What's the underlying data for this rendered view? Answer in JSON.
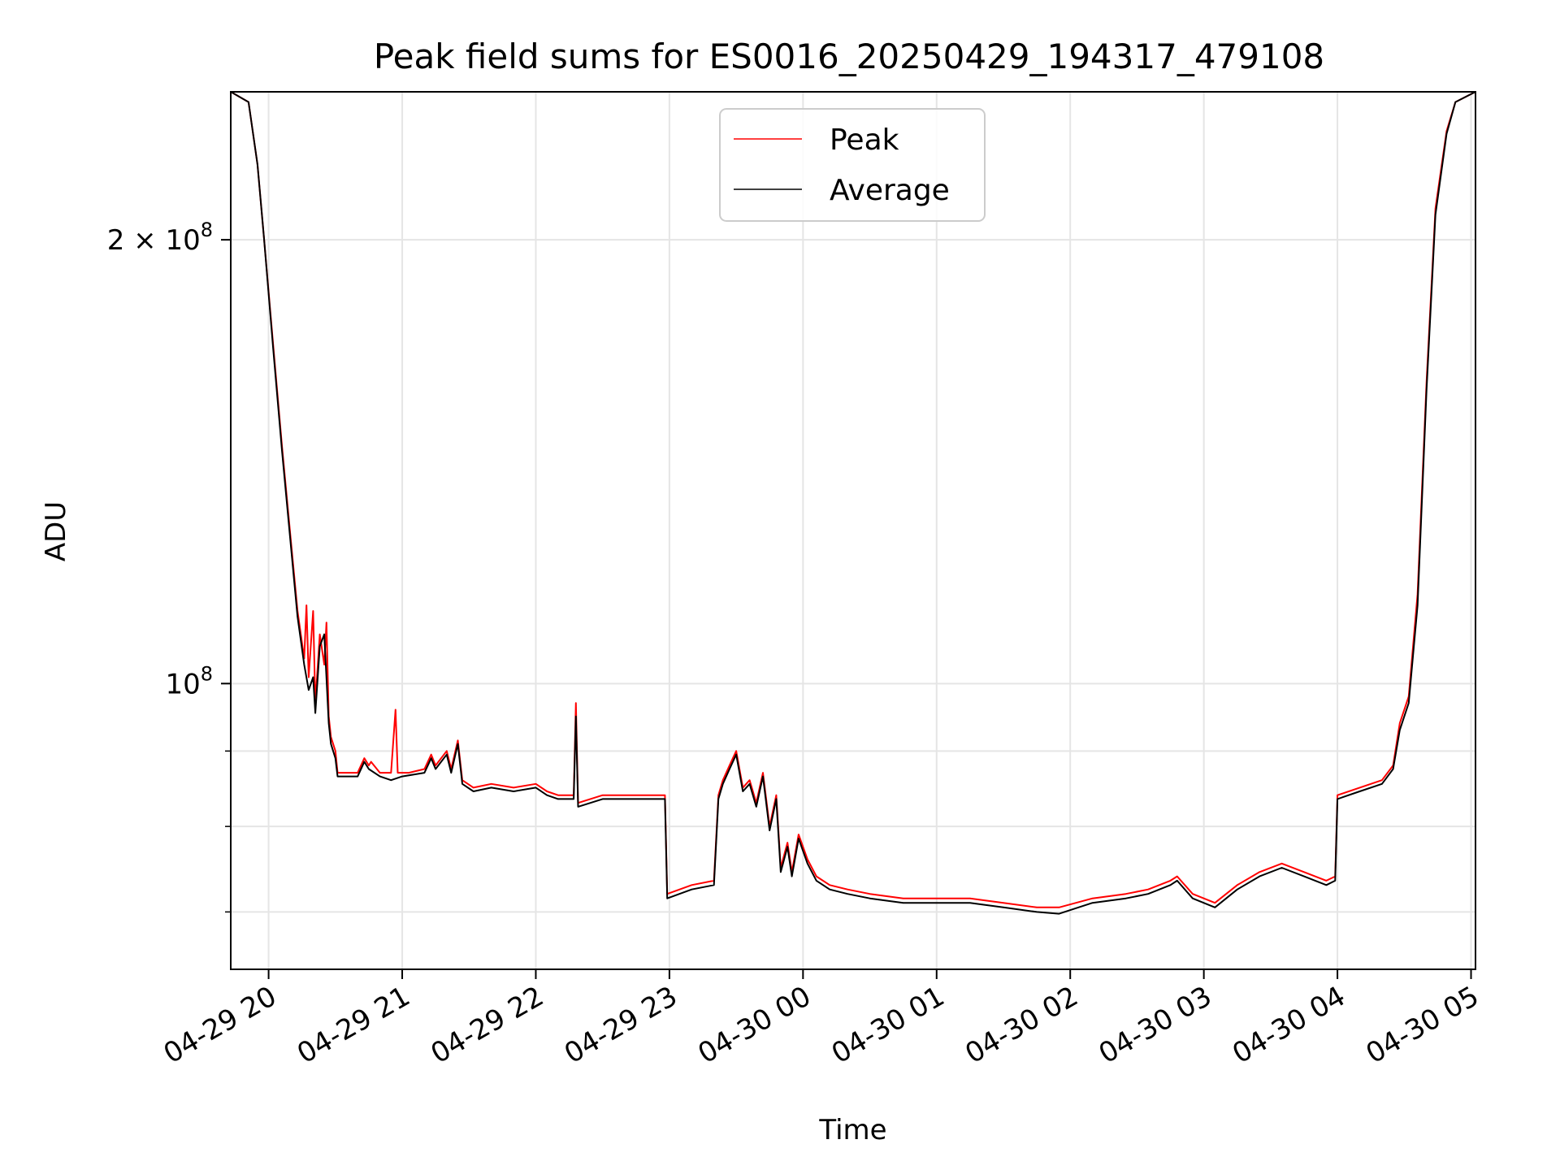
{
  "chart_data": {
    "type": "line",
    "title": "Peak field sums for ES0016_20250429_194317_479108",
    "xlabel": "Time",
    "ylabel": "ADU",
    "yscale": "log",
    "ylim": [
      64000000,
      252000000
    ],
    "xlim": [
      "2025-04-29 19:43",
      "2025-04-30 05:02"
    ],
    "grid": true,
    "legend_position": "top-center",
    "x_ticks": [
      "04-29 20",
      "04-29 21",
      "04-29 22",
      "04-29 23",
      "04-30 00",
      "04-30 01",
      "04-30 02",
      "04-30 03",
      "04-30 04",
      "04-30 05"
    ],
    "x_tick_values": [
      "2025-04-29 20:00",
      "2025-04-29 21:00",
      "2025-04-29 22:00",
      "2025-04-29 23:00",
      "2025-04-30 00:00",
      "2025-04-30 01:00",
      "2025-04-30 02:00",
      "2025-04-30 03:00",
      "2025-04-30 04:00",
      "2025-04-30 05:00"
    ],
    "y_ticks": [
      {
        "value": 200000000,
        "base": "2 × 10",
        "exp": "8"
      },
      {
        "value": 100000000,
        "base": "10",
        "exp": "8"
      }
    ],
    "y_minor_ticks": [
      70000000,
      80000000,
      90000000
    ],
    "series": [
      {
        "name": "Peak",
        "color": "#ff0000",
        "points": [
          [
            "2025-04-29 19:43",
            252000000
          ],
          [
            "2025-04-29 19:51",
            248000000
          ],
          [
            "2025-04-29 19:55",
            225000000
          ],
          [
            "2025-04-29 19:58",
            200000000
          ],
          [
            "2025-04-29 20:02",
            170000000
          ],
          [
            "2025-04-29 20:06",
            145000000
          ],
          [
            "2025-04-29 20:10",
            125000000
          ],
          [
            "2025-04-29 20:13",
            112000000
          ],
          [
            "2025-04-29 20:16",
            104000000
          ],
          [
            "2025-04-29 20:17",
            113000000
          ],
          [
            "2025-04-29 20:18",
            101000000
          ],
          [
            "2025-04-29 20:20",
            112000000
          ],
          [
            "2025-04-29 20:21",
            97000000
          ],
          [
            "2025-04-29 20:23",
            108000000
          ],
          [
            "2025-04-29 20:25",
            103000000
          ],
          [
            "2025-04-29 20:26",
            110000000
          ],
          [
            "2025-04-29 20:27",
            95000000
          ],
          [
            "2025-04-29 20:28",
            92000000
          ],
          [
            "2025-04-29 20:30",
            90000000
          ],
          [
            "2025-04-29 20:31",
            87000000
          ],
          [
            "2025-04-29 20:35",
            87000000
          ],
          [
            "2025-04-29 20:40",
            87000000
          ],
          [
            "2025-04-29 20:43",
            89000000
          ],
          [
            "2025-04-29 20:45",
            88000000
          ],
          [
            "2025-04-29 20:46",
            88500000
          ],
          [
            "2025-04-29 20:50",
            87000000
          ],
          [
            "2025-04-29 20:55",
            87000000
          ],
          [
            "2025-04-29 20:57",
            96000000
          ],
          [
            "2025-04-29 20:58",
            87000000
          ],
          [
            "2025-04-29 21:03",
            87000000
          ],
          [
            "2025-04-29 21:10",
            87500000
          ],
          [
            "2025-04-29 21:13",
            89500000
          ],
          [
            "2025-04-29 21:15",
            88000000
          ],
          [
            "2025-04-29 21:20",
            90000000
          ],
          [
            "2025-04-29 21:22",
            87500000
          ],
          [
            "2025-04-29 21:25",
            91500000
          ],
          [
            "2025-04-29 21:27",
            86000000
          ],
          [
            "2025-04-29 21:32",
            85000000
          ],
          [
            "2025-04-29 21:40",
            85500000
          ],
          [
            "2025-04-29 21:50",
            85000000
          ],
          [
            "2025-04-29 22:00",
            85500000
          ],
          [
            "2025-04-29 22:05",
            84500000
          ],
          [
            "2025-04-29 22:10",
            84000000
          ],
          [
            "2025-04-29 22:15",
            84000000
          ],
          [
            "2025-04-29 22:17",
            84000000
          ],
          [
            "2025-04-29 22:18",
            97000000
          ],
          [
            "2025-04-29 22:19",
            83000000
          ],
          [
            "2025-04-29 22:30",
            84000000
          ],
          [
            "2025-04-29 22:40",
            84000000
          ],
          [
            "2025-04-29 22:50",
            84000000
          ],
          [
            "2025-04-29 22:58",
            84000000
          ],
          [
            "2025-04-29 22:59",
            72000000
          ],
          [
            "2025-04-29 23:10",
            73000000
          ],
          [
            "2025-04-29 23:20",
            73500000
          ],
          [
            "2025-04-29 23:22",
            84000000
          ],
          [
            "2025-04-29 23:24",
            86000000
          ],
          [
            "2025-04-29 23:27",
            88000000
          ],
          [
            "2025-04-29 23:30",
            90000000
          ],
          [
            "2025-04-29 23:33",
            85000000
          ],
          [
            "2025-04-29 23:36",
            86000000
          ],
          [
            "2025-04-29 23:39",
            83000000
          ],
          [
            "2025-04-29 23:42",
            87000000
          ],
          [
            "2025-04-29 23:45",
            80000000
          ],
          [
            "2025-04-29 23:48",
            84000000
          ],
          [
            "2025-04-29 23:50",
            75000000
          ],
          [
            "2025-04-29 23:53",
            78000000
          ],
          [
            "2025-04-29 23:55",
            74500000
          ],
          [
            "2025-04-29 23:58",
            79000000
          ],
          [
            "2025-04-30 00:02",
            76000000
          ],
          [
            "2025-04-30 00:06",
            74000000
          ],
          [
            "2025-04-30 00:12",
            73000000
          ],
          [
            "2025-04-30 00:20",
            72500000
          ],
          [
            "2025-04-30 00:30",
            72000000
          ],
          [
            "2025-04-30 00:45",
            71500000
          ],
          [
            "2025-04-30 01:00",
            71500000
          ],
          [
            "2025-04-30 01:15",
            71500000
          ],
          [
            "2025-04-30 01:30",
            71000000
          ],
          [
            "2025-04-30 01:45",
            70500000
          ],
          [
            "2025-04-30 01:55",
            70500000
          ],
          [
            "2025-04-30 02:10",
            71500000
          ],
          [
            "2025-04-30 02:25",
            72000000
          ],
          [
            "2025-04-30 02:35",
            72500000
          ],
          [
            "2025-04-30 02:45",
            73500000
          ],
          [
            "2025-04-30 02:48",
            74000000
          ],
          [
            "2025-04-30 02:55",
            72000000
          ],
          [
            "2025-04-30 03:05",
            71000000
          ],
          [
            "2025-04-30 03:15",
            73000000
          ],
          [
            "2025-04-30 03:25",
            74500000
          ],
          [
            "2025-04-30 03:35",
            75500000
          ],
          [
            "2025-04-30 03:45",
            74500000
          ],
          [
            "2025-04-30 03:55",
            73500000
          ],
          [
            "2025-04-30 03:59",
            74000000
          ],
          [
            "2025-04-30 04:00",
            84000000
          ],
          [
            "2025-04-30 04:10",
            85000000
          ],
          [
            "2025-04-30 04:20",
            86000000
          ],
          [
            "2025-04-30 04:25",
            88000000
          ],
          [
            "2025-04-30 04:28",
            94000000
          ],
          [
            "2025-04-30 04:32",
            98000000
          ],
          [
            "2025-04-30 04:36",
            115000000
          ],
          [
            "2025-04-30 04:40",
            160000000
          ],
          [
            "2025-04-30 04:44",
            210000000
          ],
          [
            "2025-04-30 04:49",
            237000000
          ],
          [
            "2025-04-30 04:53",
            248000000
          ],
          [
            "2025-04-30 05:02",
            252000000
          ]
        ]
      },
      {
        "name": "Average",
        "color": "#000000",
        "points": [
          [
            "2025-04-29 19:43",
            252000000
          ],
          [
            "2025-04-29 19:51",
            248000000
          ],
          [
            "2025-04-29 19:55",
            225000000
          ],
          [
            "2025-04-29 19:58",
            200000000
          ],
          [
            "2025-04-29 20:02",
            169000000
          ],
          [
            "2025-04-29 20:06",
            144000000
          ],
          [
            "2025-04-29 20:10",
            124000000
          ],
          [
            "2025-04-29 20:13",
            111000000
          ],
          [
            "2025-04-29 20:16",
            103000000
          ],
          [
            "2025-04-29 20:18",
            99000000
          ],
          [
            "2025-04-29 20:20",
            101000000
          ],
          [
            "2025-04-29 20:21",
            95500000
          ],
          [
            "2025-04-29 20:23",
            106000000
          ],
          [
            "2025-04-29 20:25",
            108000000
          ],
          [
            "2025-04-29 20:27",
            94000000
          ],
          [
            "2025-04-29 20:28",
            91000000
          ],
          [
            "2025-04-29 20:30",
            89000000
          ],
          [
            "2025-04-29 20:31",
            86500000
          ],
          [
            "2025-04-29 20:35",
            86500000
          ],
          [
            "2025-04-29 20:40",
            86500000
          ],
          [
            "2025-04-29 20:43",
            88500000
          ],
          [
            "2025-04-29 20:45",
            87500000
          ],
          [
            "2025-04-29 20:50",
            86500000
          ],
          [
            "2025-04-29 20:55",
            86000000
          ],
          [
            "2025-04-29 21:00",
            86500000
          ],
          [
            "2025-04-29 21:10",
            87000000
          ],
          [
            "2025-04-29 21:13",
            89000000
          ],
          [
            "2025-04-29 21:15",
            87500000
          ],
          [
            "2025-04-29 21:20",
            89500000
          ],
          [
            "2025-04-29 21:22",
            87000000
          ],
          [
            "2025-04-29 21:25",
            91000000
          ],
          [
            "2025-04-29 21:27",
            85500000
          ],
          [
            "2025-04-29 21:32",
            84500000
          ],
          [
            "2025-04-29 21:40",
            85000000
          ],
          [
            "2025-04-29 21:50",
            84500000
          ],
          [
            "2025-04-29 22:00",
            85000000
          ],
          [
            "2025-04-29 22:05",
            84000000
          ],
          [
            "2025-04-29 22:10",
            83500000
          ],
          [
            "2025-04-29 22:17",
            83500000
          ],
          [
            "2025-04-29 22:18",
            95000000
          ],
          [
            "2025-04-29 22:19",
            82500000
          ],
          [
            "2025-04-29 22:30",
            83500000
          ],
          [
            "2025-04-29 22:40",
            83500000
          ],
          [
            "2025-04-29 22:50",
            83500000
          ],
          [
            "2025-04-29 22:58",
            83500000
          ],
          [
            "2025-04-29 22:59",
            71500000
          ],
          [
            "2025-04-29 23:10",
            72500000
          ],
          [
            "2025-04-29 23:20",
            73000000
          ],
          [
            "2025-04-29 23:22",
            83500000
          ],
          [
            "2025-04-29 23:24",
            85500000
          ],
          [
            "2025-04-29 23:27",
            87500000
          ],
          [
            "2025-04-29 23:30",
            89500000
          ],
          [
            "2025-04-29 23:33",
            84500000
          ],
          [
            "2025-04-29 23:36",
            85500000
          ],
          [
            "2025-04-29 23:39",
            82500000
          ],
          [
            "2025-04-29 23:42",
            86500000
          ],
          [
            "2025-04-29 23:45",
            79500000
          ],
          [
            "2025-04-29 23:48",
            83500000
          ],
          [
            "2025-04-29 23:50",
            74500000
          ],
          [
            "2025-04-29 23:53",
            77500000
          ],
          [
            "2025-04-29 23:55",
            74000000
          ],
          [
            "2025-04-29 23:58",
            78500000
          ],
          [
            "2025-04-30 00:02",
            75500000
          ],
          [
            "2025-04-30 00:06",
            73500000
          ],
          [
            "2025-04-30 00:12",
            72500000
          ],
          [
            "2025-04-30 00:20",
            72000000
          ],
          [
            "2025-04-30 00:30",
            71500000
          ],
          [
            "2025-04-30 00:45",
            71000000
          ],
          [
            "2025-04-30 01:00",
            71000000
          ],
          [
            "2025-04-30 01:15",
            71000000
          ],
          [
            "2025-04-30 01:30",
            70500000
          ],
          [
            "2025-04-30 01:45",
            70000000
          ],
          [
            "2025-04-30 01:55",
            69800000
          ],
          [
            "2025-04-30 02:10",
            71000000
          ],
          [
            "2025-04-30 02:25",
            71500000
          ],
          [
            "2025-04-30 02:35",
            72000000
          ],
          [
            "2025-04-30 02:45",
            73000000
          ],
          [
            "2025-04-30 02:48",
            73500000
          ],
          [
            "2025-04-30 02:55",
            71500000
          ],
          [
            "2025-04-30 03:05",
            70500000
          ],
          [
            "2025-04-30 03:15",
            72500000
          ],
          [
            "2025-04-30 03:25",
            74000000
          ],
          [
            "2025-04-30 03:35",
            75000000
          ],
          [
            "2025-04-30 03:45",
            74000000
          ],
          [
            "2025-04-30 03:55",
            73000000
          ],
          [
            "2025-04-30 03:59",
            73500000
          ],
          [
            "2025-04-30 04:00",
            83500000
          ],
          [
            "2025-04-30 04:10",
            84500000
          ],
          [
            "2025-04-30 04:20",
            85500000
          ],
          [
            "2025-04-30 04:25",
            87500000
          ],
          [
            "2025-04-30 04:28",
            93000000
          ],
          [
            "2025-04-30 04:32",
            97000000
          ],
          [
            "2025-04-30 04:36",
            113000000
          ],
          [
            "2025-04-30 04:40",
            158000000
          ],
          [
            "2025-04-30 04:44",
            208000000
          ],
          [
            "2025-04-30 04:49",
            236000000
          ],
          [
            "2025-04-30 04:53",
            248000000
          ],
          [
            "2025-04-30 05:02",
            252000000
          ]
        ]
      }
    ]
  }
}
